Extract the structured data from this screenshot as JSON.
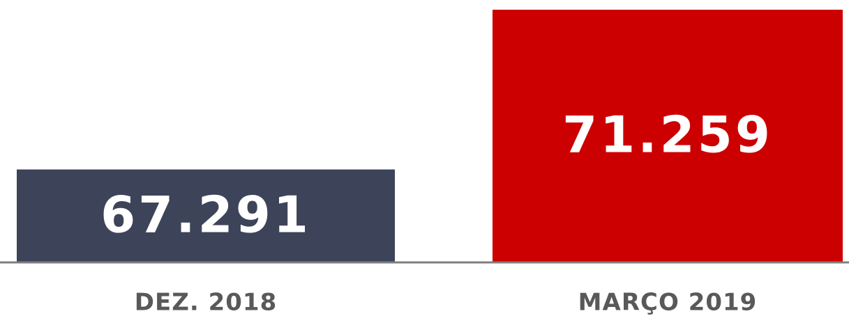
{
  "chart_data": {
    "type": "bar",
    "categories": [
      "DEZ. 2018",
      "MARÇO 2019"
    ],
    "values": [
      67291,
      71259
    ],
    "value_labels": [
      "67.291",
      "71.259"
    ],
    "colors": [
      "#3d4459",
      "#cc0000"
    ],
    "ylim": [
      65000,
      71500
    ]
  }
}
